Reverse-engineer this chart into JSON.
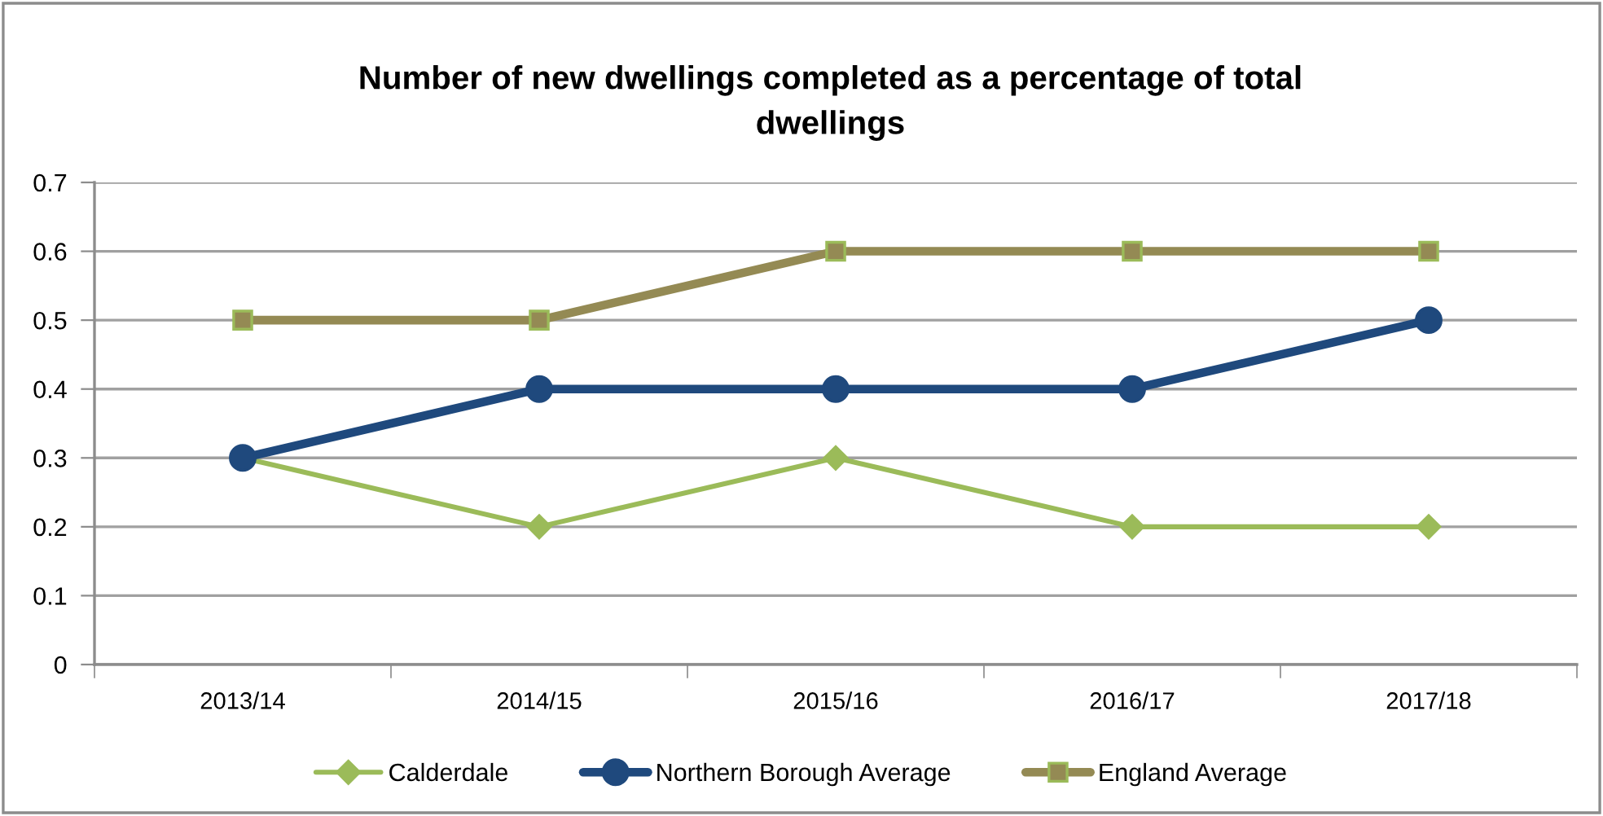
{
  "chart_data": {
    "type": "line",
    "title": "Number of new dwellings completed as a percentage of total\ndwellings",
    "categories": [
      "2013/14",
      "2014/15",
      "2015/16",
      "2016/17",
      "2017/18"
    ],
    "series": [
      {
        "name": "Calderdale",
        "color": "#9bbb59",
        "marker": "diamond",
        "values": [
          0.3,
          0.2,
          0.3,
          0.2,
          0.2
        ]
      },
      {
        "name": "Northern Borough Average",
        "color": "#1f497d",
        "marker": "circle",
        "values": [
          0.3,
          0.4,
          0.4,
          0.4,
          0.5
        ]
      },
      {
        "name": "England Average",
        "color": "#948a54",
        "marker": "square",
        "values": [
          0.5,
          0.5,
          0.6,
          0.6,
          0.6
        ]
      }
    ],
    "ylim": [
      0,
      0.7
    ],
    "yticks": [
      0,
      0.1,
      0.2,
      0.3,
      0.4,
      0.5,
      0.6,
      0.7
    ],
    "grid": "y",
    "legend": "bottom",
    "line_style": "solid"
  }
}
